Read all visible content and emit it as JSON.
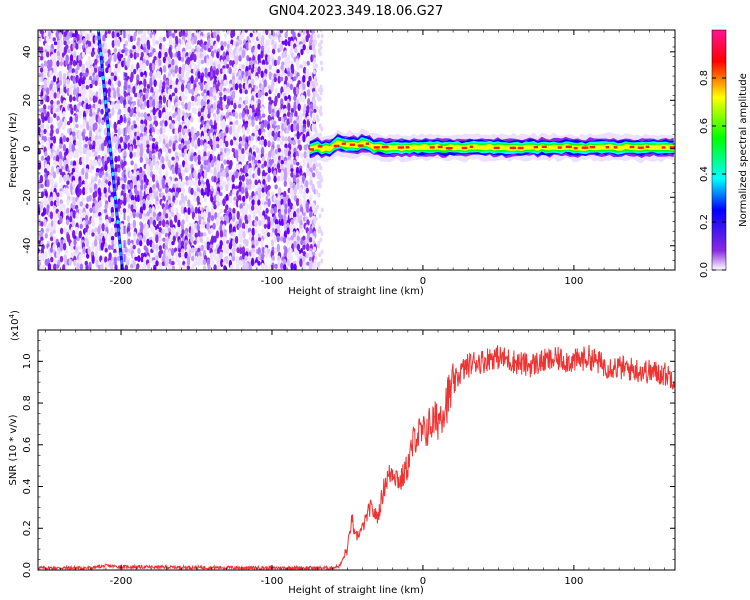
{
  "title": "GN04.2023.349.18.06.G27",
  "chart_data": [
    {
      "type": "heatmap",
      "xlabel": "Height of straight line (km)",
      "ylabel": "Frequency (Hz)",
      "xlim": [
        -255,
        167
      ],
      "ylim": [
        -50,
        49
      ],
      "xticks": [
        -200,
        -100,
        0,
        100
      ],
      "yticks": [
        -40,
        -20,
        0,
        20,
        40
      ],
      "colorbar": {
        "label": "Normalized spectral amplitude",
        "range": [
          0.0,
          1.0
        ],
        "ticks": [
          "0.0",
          "0.2",
          "0.4",
          "0.6",
          "0.8"
        ],
        "colormap": [
          "#ffffff",
          "#8a2be2",
          "#0000ff",
          "#00ffff",
          "#00ff00",
          "#ffff00",
          "#ff0000",
          "#ff1493"
        ]
      },
      "noise_region_x": [
        -255,
        -72
      ],
      "tone_line": {
        "x_at_ymax": -215,
        "x_at_ymin": -199
      },
      "signal_band": {
        "x_start": -75,
        "x_end": 167,
        "center_hz": 0.5,
        "half_width_hz": 3
      }
    },
    {
      "type": "line",
      "xlabel": "Height of straight line (km)",
      "ylabel": "SNR (10 * v/v)",
      "scale_label": "(x10",
      "scale_exp": "4",
      "xlim": [
        -255,
        167
      ],
      "ylim": [
        0,
        1.15
      ],
      "xticks": [
        -200,
        -100,
        0,
        100
      ],
      "yticks": [
        "0.0",
        "0.2",
        "0.4",
        "0.6",
        "0.8",
        "1.0"
      ],
      "series": [
        {
          "color": "#ee3333",
          "x": [
            -255,
            -220,
            -210,
            -200,
            -100,
            -60,
            -55,
            -50,
            -47,
            -45,
            -40,
            -35,
            -30,
            -25,
            -20,
            -15,
            -10,
            -5,
            0,
            5,
            10,
            15,
            20,
            25,
            30,
            35,
            40,
            45,
            50,
            60,
            70,
            80,
            90,
            100,
            110,
            120,
            130,
            140,
            150,
            160,
            167
          ],
          "y": [
            0.01,
            0.01,
            0.02,
            0.015,
            0.01,
            0.01,
            0.02,
            0.1,
            0.25,
            0.15,
            0.2,
            0.3,
            0.25,
            0.42,
            0.48,
            0.42,
            0.5,
            0.65,
            0.65,
            0.7,
            0.72,
            0.8,
            0.88,
            0.95,
            0.98,
            1.0,
            1.0,
            1.02,
            1.02,
            1.0,
            0.98,
            1.0,
            1.01,
            1.0,
            1.02,
            0.98,
            0.97,
            0.96,
            0.95,
            0.94,
            0.92
          ]
        }
      ]
    }
  ]
}
